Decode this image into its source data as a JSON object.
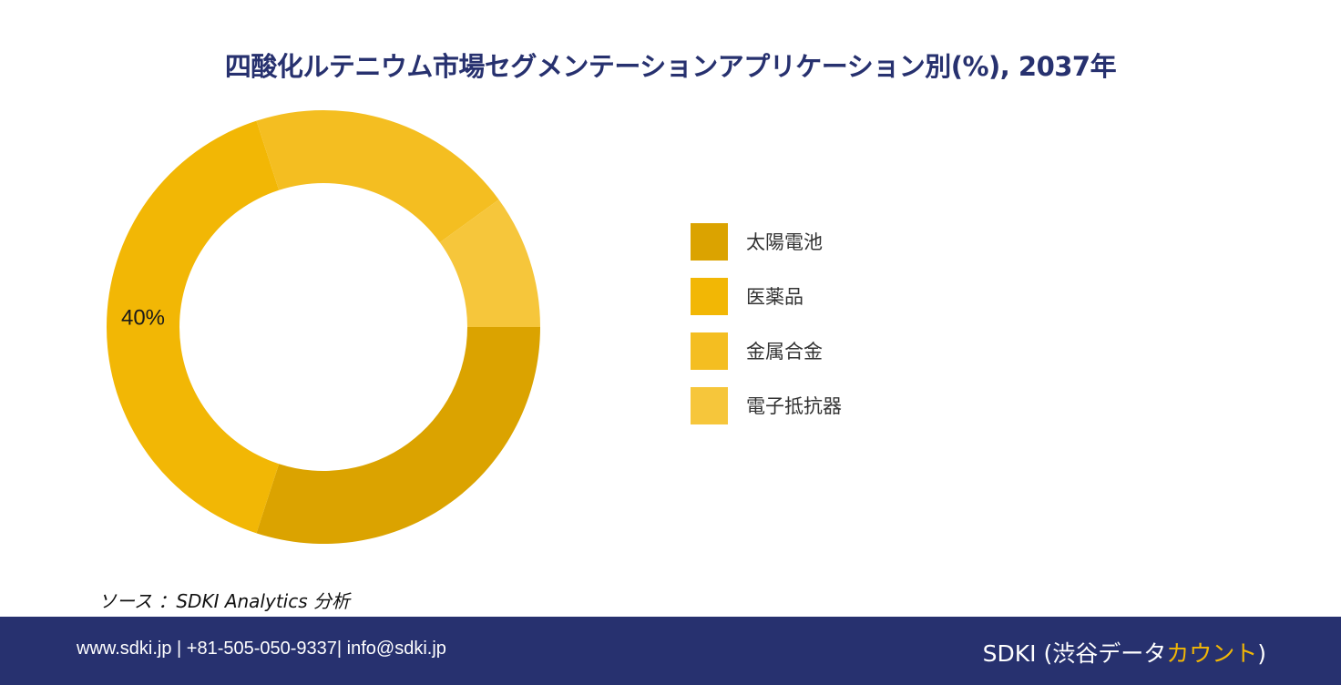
{
  "title": "四酸化ルテニウム市場セグメンテーションアプリケーション別(%), 2037年",
  "chart_data": {
    "type": "pie",
    "categories": [
      "太陽電池",
      "医薬品",
      "金属合金",
      "電子抵抗器"
    ],
    "values": [
      30,
      40,
      20,
      10
    ],
    "data_labels": [
      "",
      "40%",
      "",
      ""
    ],
    "colors": [
      "#dba300",
      "#f2b705",
      "#f4be21",
      "#f6c63b"
    ],
    "donut": true,
    "legend_position": "right"
  },
  "source": "ソース ：SDKI Analytics 分析",
  "footer": {
    "contact": "www.sdki.jp | +81-505-050-9337| info@sdki.jp",
    "brand_prefix": "SDKI (渋谷データ",
    "brand_accent": "カウント",
    "brand_suffix": ")"
  }
}
